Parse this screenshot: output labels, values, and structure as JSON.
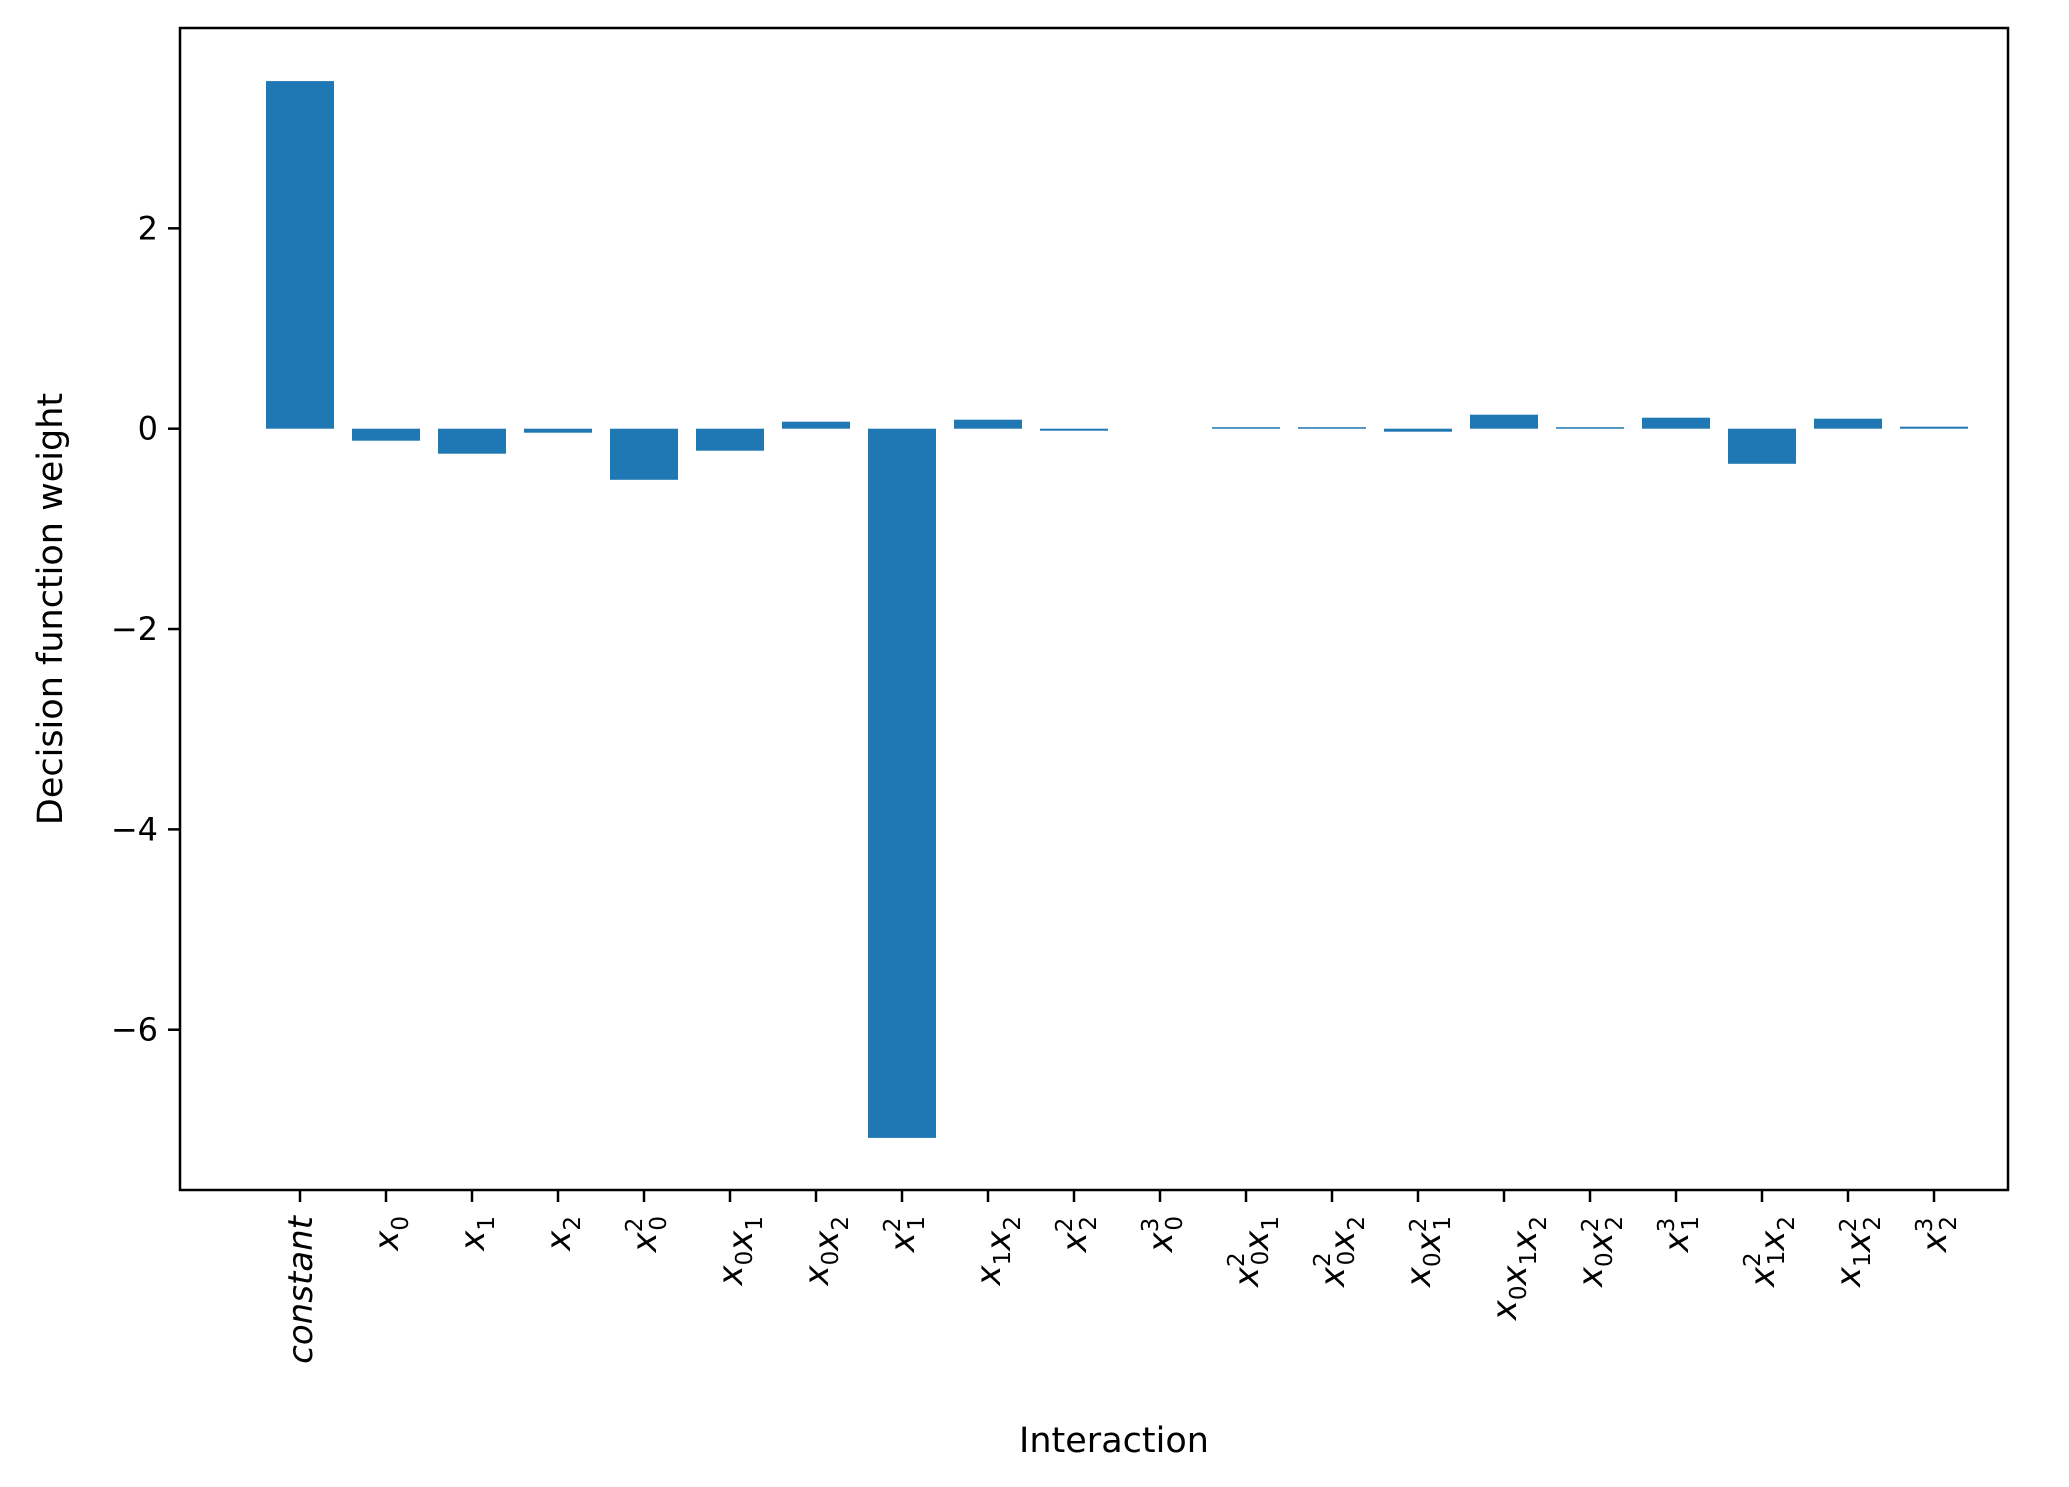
{
  "chart_data": {
    "type": "bar",
    "xlabel": "Interaction",
    "ylabel": "Decision function weight",
    "ylim": [
      -7.6,
      4.0
    ],
    "yticks": [
      2,
      0,
      -2,
      -4,
      -6
    ],
    "ytick_labels": [
      "2",
      "0",
      "−2",
      "−4",
      "−6"
    ],
    "bar_color": "#1f77b4",
    "grid": false,
    "categories": [
      "constant",
      "x0",
      "x1",
      "x2",
      "x0^2",
      "x0 x1",
      "x0 x2",
      "x1^2",
      "x1 x2",
      "x2^2",
      "x0^3",
      "x0^2 x1",
      "x0^2 x2",
      "x0 x1^2",
      "x0 x1 x2",
      "x0 x2^2",
      "x1^3",
      "x1^2 x2",
      "x1 x2^2",
      "x2^3"
    ],
    "category_labels": [
      {
        "text": "constant",
        "italic": true
      },
      {
        "math": [
          {
            "b": "x",
            "sub": "0"
          }
        ]
      },
      {
        "math": [
          {
            "b": "x",
            "sub": "1"
          }
        ]
      },
      {
        "math": [
          {
            "b": "x",
            "sub": "2"
          }
        ]
      },
      {
        "math": [
          {
            "b": "x",
            "sub": "0",
            "sup": "2"
          }
        ]
      },
      {
        "math": [
          {
            "b": "x",
            "sub": "0"
          },
          {
            "b": "x",
            "sub": "1"
          }
        ]
      },
      {
        "math": [
          {
            "b": "x",
            "sub": "0"
          },
          {
            "b": "x",
            "sub": "2"
          }
        ]
      },
      {
        "math": [
          {
            "b": "x",
            "sub": "1",
            "sup": "2"
          }
        ]
      },
      {
        "math": [
          {
            "b": "x",
            "sub": "1"
          },
          {
            "b": "x",
            "sub": "2"
          }
        ]
      },
      {
        "math": [
          {
            "b": "x",
            "sub": "2",
            "sup": "2"
          }
        ]
      },
      {
        "math": [
          {
            "b": "x",
            "sub": "0",
            "sup": "3"
          }
        ]
      },
      {
        "math": [
          {
            "b": "x",
            "sub": "0",
            "sup": "2"
          },
          {
            "b": "x",
            "sub": "1"
          }
        ]
      },
      {
        "math": [
          {
            "b": "x",
            "sub": "0",
            "sup": "2"
          },
          {
            "b": "x",
            "sub": "2"
          }
        ]
      },
      {
        "math": [
          {
            "b": "x",
            "sub": "0"
          },
          {
            "b": "x",
            "sub": "1",
            "sup": "2"
          }
        ]
      },
      {
        "math": [
          {
            "b": "x",
            "sub": "0"
          },
          {
            "b": "x",
            "sub": "1"
          },
          {
            "b": "x",
            "sub": "2"
          }
        ]
      },
      {
        "math": [
          {
            "b": "x",
            "sub": "0"
          },
          {
            "b": "x",
            "sub": "2",
            "sup": "2"
          }
        ]
      },
      {
        "math": [
          {
            "b": "x",
            "sub": "1",
            "sup": "3"
          }
        ]
      },
      {
        "math": [
          {
            "b": "x",
            "sub": "1",
            "sup": "2"
          },
          {
            "b": "x",
            "sub": "2"
          }
        ]
      },
      {
        "math": [
          {
            "b": "x",
            "sub": "1"
          },
          {
            "b": "x",
            "sub": "2",
            "sup": "2"
          }
        ]
      },
      {
        "math": [
          {
            "b": "x",
            "sub": "2",
            "sup": "3"
          }
        ]
      }
    ],
    "values": [
      3.47,
      -0.12,
      -0.25,
      -0.04,
      -0.51,
      -0.22,
      0.07,
      -7.08,
      0.09,
      -0.02,
      0.0,
      0.01,
      0.01,
      -0.03,
      0.14,
      0.01,
      0.11,
      -0.35,
      0.1,
      0.02
    ]
  }
}
